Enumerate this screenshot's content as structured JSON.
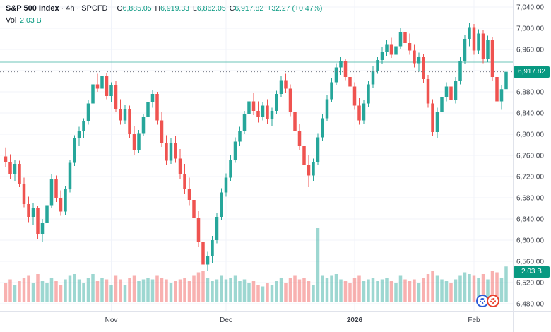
{
  "legend": {
    "symbol": "S&P 500 Index",
    "separator": "·",
    "interval": "4h",
    "exchange": "SPCFD",
    "ohlc": [
      {
        "k": "O",
        "v": "6,885.05"
      },
      {
        "k": "H",
        "v": "6,919.33"
      },
      {
        "k": "L",
        "v": "6,862.05"
      },
      {
        "k": "C",
        "v": "6,917.82"
      }
    ],
    "change": "+32.27 (+0.47%)",
    "vol_label": "Vol",
    "vol_value": "2.03 B"
  },
  "badges": {
    "price": "6,917.82",
    "volume": "2.03 B"
  },
  "chart_data": {
    "type": "candlestick",
    "title": "S&P 500 Index · 4h · SPCFD",
    "xlabel": "",
    "ylabel": "",
    "ylim": [
      6480,
      7040
    ],
    "y_tick_step": 40,
    "y_ticks": [
      "7,040.00",
      "7,000.00",
      "6,960.00",
      "6,920.00",
      "6,880.00",
      "6,840.00",
      "6,800.00",
      "6,760.00",
      "6,720.00",
      "6,680.00",
      "6,640.00",
      "6,600.00",
      "6,560.00",
      "6,520.00",
      "6,480.00"
    ],
    "x_ticks": [
      {
        "label": "Nov",
        "index": 23
      },
      {
        "label": "Dec",
        "index": 48
      },
      {
        "label": "2026",
        "index": 76
      },
      {
        "label": "Feb",
        "index": 102
      }
    ],
    "last_price": 6917.82,
    "last_volume_b": 2.03,
    "horizontal_line": 6936,
    "grid": true,
    "colors": {
      "up": "#26a69a",
      "down": "#ef5350",
      "vol_up": "rgba(38,166,154,0.45)",
      "vol_down": "rgba(239,83,80,0.45)",
      "badge": "#089981",
      "grid": "#f0f3fa",
      "axis_line": "#e0e3eb",
      "axis_text": "#3a3e47",
      "dotted_line": "#787b86",
      "hline": "#4ab8a8"
    },
    "candles": [
      [
        6758,
        6775,
        6738,
        6748,
        1.1
      ],
      [
        6748,
        6762,
        6716,
        6724,
        1.3
      ],
      [
        6724,
        6752,
        6712,
        6744,
        1.0
      ],
      [
        6744,
        6750,
        6700,
        6706,
        1.2
      ],
      [
        6706,
        6718,
        6662,
        6668,
        1.4
      ],
      [
        6668,
        6682,
        6634,
        6644,
        1.5
      ],
      [
        6644,
        6670,
        6628,
        6660,
        1.1
      ],
      [
        6660,
        6664,
        6602,
        6612,
        1.6
      ],
      [
        6612,
        6640,
        6596,
        6632,
        1.2
      ],
      [
        6632,
        6674,
        6624,
        6666,
        1.1
      ],
      [
        6666,
        6724,
        6660,
        6716,
        1.4
      ],
      [
        6716,
        6722,
        6672,
        6680,
        1.2
      ],
      [
        6680,
        6694,
        6646,
        6654,
        1.0
      ],
      [
        6654,
        6702,
        6648,
        6696,
        1.3
      ],
      [
        6696,
        6752,
        6690,
        6746,
        1.5
      ],
      [
        6746,
        6798,
        6740,
        6792,
        1.6
      ],
      [
        6792,
        6814,
        6778,
        6806,
        1.3
      ],
      [
        6806,
        6830,
        6792,
        6824,
        1.1
      ],
      [
        6824,
        6864,
        6818,
        6858,
        1.4
      ],
      [
        6858,
        6902,
        6852,
        6894,
        1.6
      ],
      [
        6894,
        6914,
        6880,
        6886,
        1.2
      ],
      [
        6886,
        6922,
        6882,
        6910,
        1.4
      ],
      [
        6910,
        6916,
        6866,
        6872,
        1.3
      ],
      [
        6872,
        6898,
        6860,
        6892,
        1.0
      ],
      [
        6892,
        6900,
        6842,
        6848,
        1.5
      ],
      [
        6848,
        6866,
        6818,
        6826,
        1.3
      ],
      [
        6826,
        6856,
        6820,
        6848,
        1.0
      ],
      [
        6848,
        6854,
        6792,
        6800,
        1.4
      ],
      [
        6800,
        6816,
        6760,
        6770,
        1.5
      ],
      [
        6770,
        6808,
        6764,
        6802,
        1.2
      ],
      [
        6802,
        6838,
        6796,
        6832,
        1.3
      ],
      [
        6832,
        6866,
        6826,
        6860,
        1.4
      ],
      [
        6860,
        6884,
        6850,
        6876,
        1.3
      ],
      [
        6876,
        6880,
        6818,
        6826,
        1.5
      ],
      [
        6826,
        6842,
        6776,
        6784,
        1.4
      ],
      [
        6784,
        6798,
        6742,
        6750,
        1.3
      ],
      [
        6750,
        6792,
        6744,
        6784,
        1.1
      ],
      [
        6784,
        6796,
        6746,
        6754,
        1.2
      ],
      [
        6754,
        6772,
        6716,
        6724,
        1.3
      ],
      [
        6724,
        6744,
        6688,
        6696,
        1.4
      ],
      [
        6696,
        6718,
        6666,
        6676,
        1.2
      ],
      [
        6676,
        6698,
        6634,
        6642,
        1.5
      ],
      [
        6642,
        6656,
        6588,
        6596,
        1.7
      ],
      [
        6596,
        6612,
        6546,
        6554,
        1.8
      ],
      [
        6554,
        6578,
        6542,
        6570,
        1.4
      ],
      [
        6570,
        6608,
        6556,
        6600,
        1.2
      ],
      [
        6600,
        6652,
        6594,
        6644,
        1.3
      ],
      [
        6644,
        6698,
        6638,
        6690,
        1.5
      ],
      [
        6690,
        6726,
        6682,
        6718,
        1.3
      ],
      [
        6718,
        6760,
        6712,
        6752,
        1.4
      ],
      [
        6752,
        6794,
        6746,
        6786,
        1.5
      ],
      [
        6786,
        6814,
        6778,
        6806,
        1.2
      ],
      [
        6806,
        6844,
        6800,
        6838,
        1.3
      ],
      [
        6838,
        6870,
        6830,
        6862,
        1.1
      ],
      [
        6862,
        6878,
        6836,
        6844,
        1.2
      ],
      [
        6844,
        6862,
        6822,
        6832,
        1.0
      ],
      [
        6832,
        6860,
        6826,
        6854,
        0.9
      ],
      [
        6854,
        6866,
        6820,
        6828,
        1.1
      ],
      [
        6828,
        6850,
        6816,
        6844,
        1.0
      ],
      [
        6844,
        6882,
        6838,
        6876,
        1.2
      ],
      [
        6876,
        6910,
        6870,
        6902,
        1.4
      ],
      [
        6902,
        6914,
        6878,
        6886,
        1.1
      ],
      [
        6886,
        6894,
        6834,
        6842,
        1.4
      ],
      [
        6842,
        6856,
        6798,
        6806,
        1.5
      ],
      [
        6806,
        6820,
        6770,
        6778,
        1.3
      ],
      [
        6778,
        6792,
        6734,
        6742,
        1.4
      ],
      [
        6742,
        6760,
        6700,
        6722,
        1.2
      ],
      [
        6722,
        6754,
        6712,
        6748,
        1.0
      ],
      [
        6748,
        6802,
        6742,
        6794,
        4.2
      ],
      [
        6794,
        6838,
        6788,
        6830,
        1.5
      ],
      [
        6830,
        6874,
        6824,
        6866,
        1.4
      ],
      [
        6866,
        6906,
        6860,
        6898,
        1.5
      ],
      [
        6898,
        6934,
        6892,
        6926,
        1.6
      ],
      [
        6926,
        6946,
        6912,
        6938,
        1.3
      ],
      [
        6938,
        6942,
        6902,
        6908,
        1.2
      ],
      [
        6908,
        6924,
        6884,
        6890,
        1.1
      ],
      [
        6890,
        6898,
        6846,
        6854,
        1.4
      ],
      [
        6854,
        6868,
        6818,
        6826,
        1.5
      ],
      [
        6826,
        6864,
        6820,
        6858,
        1.2
      ],
      [
        6858,
        6900,
        6852,
        6894,
        1.3
      ],
      [
        6894,
        6928,
        6888,
        6920,
        1.4
      ],
      [
        6920,
        6946,
        6914,
        6940,
        1.2
      ],
      [
        6940,
        6964,
        6932,
        6956,
        1.3
      ],
      [
        6956,
        6978,
        6948,
        6970,
        1.4
      ],
      [
        6970,
        6982,
        6944,
        6950,
        1.2
      ],
      [
        6950,
        6974,
        6942,
        6966,
        1.1
      ],
      [
        6966,
        7000,
        6960,
        6992,
        1.5
      ],
      [
        6992,
        7004,
        6966,
        6972,
        1.3
      ],
      [
        6972,
        6990,
        6950,
        6958,
        1.2
      ],
      [
        6958,
        6970,
        6926,
        6934,
        1.3
      ],
      [
        6934,
        6954,
        6918,
        6946,
        1.1
      ],
      [
        6946,
        6952,
        6896,
        6904,
        1.4
      ],
      [
        6904,
        6912,
        6850,
        6858,
        1.6
      ],
      [
        6858,
        6866,
        6796,
        6804,
        1.8
      ],
      [
        6804,
        6850,
        6792,
        6842,
        1.5
      ],
      [
        6842,
        6878,
        6836,
        6870,
        1.3
      ],
      [
        6870,
        6898,
        6862,
        6890,
        1.2
      ],
      [
        6890,
        6904,
        6856,
        6864,
        1.1
      ],
      [
        6864,
        6908,
        6858,
        6900,
        1.3
      ],
      [
        6900,
        6946,
        6894,
        6938,
        1.5
      ],
      [
        6938,
        6988,
        6932,
        6980,
        1.7
      ],
      [
        6980,
        7010,
        6966,
        7002,
        1.6
      ],
      [
        7002,
        7008,
        6950,
        6958,
        1.5
      ],
      [
        6958,
        6998,
        6952,
        6990,
        1.4
      ],
      [
        6990,
        6996,
        6934,
        6942,
        1.6
      ],
      [
        6942,
        6986,
        6936,
        6978,
        1.3
      ],
      [
        6978,
        6984,
        6900,
        6908,
        1.8
      ],
      [
        6908,
        6922,
        6854,
        6862,
        1.7
      ],
      [
        6862,
        6892,
        6846,
        6885,
        1.4
      ],
      [
        6885.05,
        6919.33,
        6862.05,
        6917.82,
        2.03
      ]
    ]
  }
}
